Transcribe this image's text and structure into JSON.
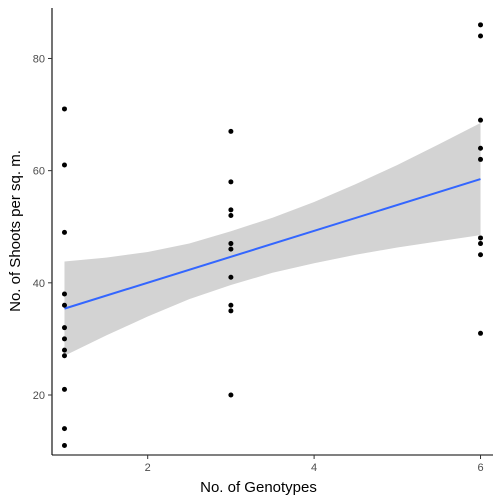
{
  "chart_data": {
    "type": "scatter",
    "xlabel": "No. of Genotypes",
    "ylabel": "No. of Shoots per sq. m.",
    "xlim": [
      0.85,
      6.15
    ],
    "ylim": [
      9.3,
      89
    ],
    "xticks": [
      2,
      4,
      6
    ],
    "yticks": [
      20,
      40,
      60,
      80
    ],
    "grid": false,
    "points": [
      {
        "x": 1,
        "y": 71
      },
      {
        "x": 1,
        "y": 61
      },
      {
        "x": 1,
        "y": 49
      },
      {
        "x": 1,
        "y": 38
      },
      {
        "x": 1,
        "y": 36
      },
      {
        "x": 1,
        "y": 32
      },
      {
        "x": 1,
        "y": 30
      },
      {
        "x": 1,
        "y": 28
      },
      {
        "x": 1,
        "y": 27
      },
      {
        "x": 1,
        "y": 21
      },
      {
        "x": 1,
        "y": 14
      },
      {
        "x": 1,
        "y": 11
      },
      {
        "x": 3,
        "y": 67
      },
      {
        "x": 3,
        "y": 58
      },
      {
        "x": 3,
        "y": 53
      },
      {
        "x": 3,
        "y": 52
      },
      {
        "x": 3,
        "y": 47
      },
      {
        "x": 3,
        "y": 46
      },
      {
        "x": 3,
        "y": 41
      },
      {
        "x": 3,
        "y": 36
      },
      {
        "x": 3,
        "y": 35
      },
      {
        "x": 3,
        "y": 20
      },
      {
        "x": 6,
        "y": 86
      },
      {
        "x": 6,
        "y": 84
      },
      {
        "x": 6,
        "y": 69
      },
      {
        "x": 6,
        "y": 64
      },
      {
        "x": 6,
        "y": 62
      },
      {
        "x": 6,
        "y": 48
      },
      {
        "x": 6,
        "y": 47
      },
      {
        "x": 6,
        "y": 45
      },
      {
        "x": 6,
        "y": 31
      }
    ],
    "fit_line": {
      "x": [
        1,
        6
      ],
      "y": [
        35.4,
        58.5
      ],
      "color": "#3366ff"
    },
    "confidence_band": {
      "x": [
        1,
        1.5,
        2,
        2.5,
        3,
        3.5,
        4,
        4.5,
        5,
        5.5,
        6
      ],
      "lower": [
        27.0,
        30.6,
        34.0,
        37.1,
        39.6,
        41.8,
        43.5,
        45.0,
        46.3,
        47.4,
        48.5
      ],
      "upper": [
        43.8,
        44.5,
        45.5,
        47.0,
        49.2,
        51.6,
        54.4,
        57.6,
        61.0,
        64.7,
        68.5
      ],
      "color": "#d3d3d3"
    },
    "point_color": "#000000",
    "axis_color": "#000000"
  }
}
